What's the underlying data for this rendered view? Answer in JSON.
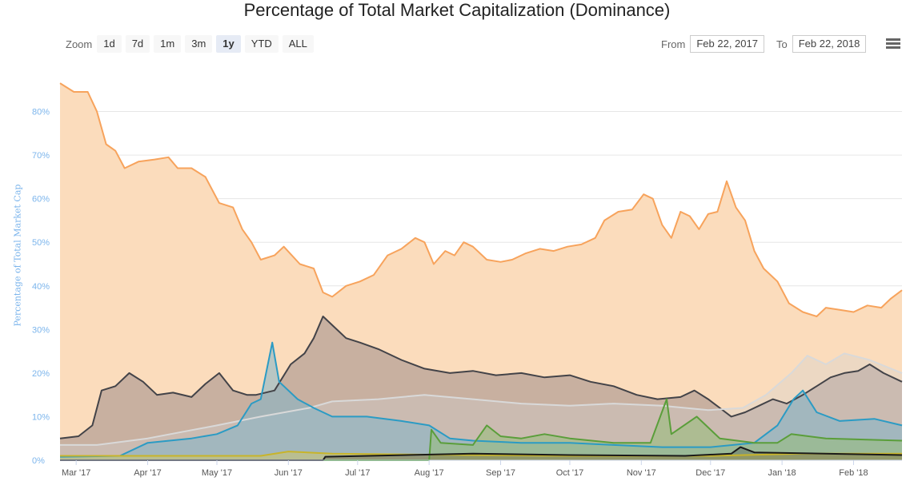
{
  "title": "Percentage of Total Market Capitalization (Dominance)",
  "zoom": {
    "label": "Zoom",
    "buttons": [
      "1d",
      "7d",
      "1m",
      "3m",
      "1y",
      "YTD",
      "ALL"
    ],
    "active": "1y"
  },
  "range": {
    "from_label": "From",
    "from_value": "Feb 22, 2017",
    "to_label": "To",
    "to_value": "Feb 22, 2018"
  },
  "menu_icon": "hamburger-menu-icon",
  "chart_data": {
    "type": "area",
    "title": "Percentage of Total Market Capitalization (Dominance)",
    "ylabel": "Percentage of Total Market Cap",
    "ylim": [
      0,
      90
    ],
    "y_ticks": [
      "0%",
      "10%",
      "20%",
      "30%",
      "40%",
      "50%",
      "60%",
      "70%",
      "80%"
    ],
    "x_ticks": [
      "Mar '17",
      "Apr '17",
      "May '17",
      "Jun '17",
      "Jul '17",
      "Aug '17",
      "Sep '17",
      "Oct '17",
      "Nov '17",
      "Dec '17",
      "Jan '18",
      "Feb '18"
    ],
    "xlim": [
      "2017-02-22",
      "2018-02-22"
    ],
    "grid": true,
    "legend": "none",
    "series": [
      {
        "color": "#f7a35c",
        "fill": "#fbdcbc",
        "points": [
          [
            "2017-02-22",
            86.5
          ],
          [
            "2017-02-28",
            84.5
          ],
          [
            "2017-03-06",
            84.5
          ],
          [
            "2017-03-10",
            80
          ],
          [
            "2017-03-14",
            72.5
          ],
          [
            "2017-03-18",
            71
          ],
          [
            "2017-03-22",
            67
          ],
          [
            "2017-03-28",
            68.5
          ],
          [
            "2017-04-04",
            69
          ],
          [
            "2017-04-10",
            69.5
          ],
          [
            "2017-04-14",
            67
          ],
          [
            "2017-04-20",
            67
          ],
          [
            "2017-04-26",
            65
          ],
          [
            "2017-05-02",
            59
          ],
          [
            "2017-05-08",
            58
          ],
          [
            "2017-05-12",
            53
          ],
          [
            "2017-05-16",
            50
          ],
          [
            "2017-05-20",
            46
          ],
          [
            "2017-05-26",
            47
          ],
          [
            "2017-05-30",
            49
          ],
          [
            "2017-06-06",
            45
          ],
          [
            "2017-06-12",
            44
          ],
          [
            "2017-06-16",
            38.5
          ],
          [
            "2017-06-20",
            37.5
          ],
          [
            "2017-06-26",
            40
          ],
          [
            "2017-07-02",
            41
          ],
          [
            "2017-07-08",
            42.5
          ],
          [
            "2017-07-14",
            47
          ],
          [
            "2017-07-20",
            48.5
          ],
          [
            "2017-07-26",
            51
          ],
          [
            "2017-07-30",
            50
          ],
          [
            "2017-08-03",
            45
          ],
          [
            "2017-08-08",
            48
          ],
          [
            "2017-08-12",
            47
          ],
          [
            "2017-08-16",
            50
          ],
          [
            "2017-08-20",
            49
          ],
          [
            "2017-08-26",
            46
          ],
          [
            "2017-09-01",
            45.5
          ],
          [
            "2017-09-06",
            46
          ],
          [
            "2017-09-12",
            47.5
          ],
          [
            "2017-09-18",
            48.5
          ],
          [
            "2017-09-24",
            48
          ],
          [
            "2017-09-30",
            49
          ],
          [
            "2017-10-06",
            49.5
          ],
          [
            "2017-10-12",
            51
          ],
          [
            "2017-10-16",
            55
          ],
          [
            "2017-10-22",
            57
          ],
          [
            "2017-10-28",
            57.5
          ],
          [
            "2017-11-02",
            61
          ],
          [
            "2017-11-06",
            60
          ],
          [
            "2017-11-10",
            54
          ],
          [
            "2017-11-14",
            51
          ],
          [
            "2017-11-18",
            57
          ],
          [
            "2017-11-22",
            56
          ],
          [
            "2017-11-26",
            53
          ],
          [
            "2017-11-30",
            56.5
          ],
          [
            "2017-12-04",
            57
          ],
          [
            "2017-12-08",
            64
          ],
          [
            "2017-12-12",
            58
          ],
          [
            "2017-12-16",
            55
          ],
          [
            "2017-12-20",
            48
          ],
          [
            "2017-12-24",
            44
          ],
          [
            "2017-12-30",
            41
          ],
          [
            "2018-01-04",
            36
          ],
          [
            "2018-01-10",
            34
          ],
          [
            "2018-01-16",
            33
          ],
          [
            "2018-01-20",
            35
          ],
          [
            "2018-01-26",
            34.5
          ],
          [
            "2018-02-01",
            34
          ],
          [
            "2018-02-07",
            35.5
          ],
          [
            "2018-02-13",
            35
          ],
          [
            "2018-02-17",
            37
          ],
          [
            "2018-02-22",
            39
          ]
        ]
      },
      {
        "color": "#434348",
        "fill": "#c8b0a0",
        "points": [
          [
            "2017-02-22",
            5
          ],
          [
            "2017-03-02",
            5.5
          ],
          [
            "2017-03-08",
            8
          ],
          [
            "2017-03-12",
            16
          ],
          [
            "2017-03-18",
            17
          ],
          [
            "2017-03-24",
            20
          ],
          [
            "2017-03-30",
            18
          ],
          [
            "2017-04-05",
            15
          ],
          [
            "2017-04-12",
            15.5
          ],
          [
            "2017-04-20",
            14.5
          ],
          [
            "2017-04-26",
            17.5
          ],
          [
            "2017-05-02",
            20
          ],
          [
            "2017-05-08",
            16
          ],
          [
            "2017-05-14",
            15
          ],
          [
            "2017-05-18",
            15
          ],
          [
            "2017-05-26",
            16
          ],
          [
            "2017-06-02",
            22
          ],
          [
            "2017-06-08",
            24.5
          ],
          [
            "2017-06-12",
            28
          ],
          [
            "2017-06-16",
            33
          ],
          [
            "2017-06-20",
            31
          ],
          [
            "2017-06-26",
            28
          ],
          [
            "2017-07-02",
            27
          ],
          [
            "2017-07-10",
            25.5
          ],
          [
            "2017-07-20",
            23
          ],
          [
            "2017-07-30",
            21
          ],
          [
            "2017-08-10",
            20
          ],
          [
            "2017-08-20",
            20.5
          ],
          [
            "2017-08-30",
            19.5
          ],
          [
            "2017-09-10",
            20
          ],
          [
            "2017-09-20",
            19
          ],
          [
            "2017-10-01",
            19.5
          ],
          [
            "2017-10-10",
            18
          ],
          [
            "2017-10-20",
            17
          ],
          [
            "2017-10-30",
            15
          ],
          [
            "2017-11-08",
            14
          ],
          [
            "2017-11-18",
            14.5
          ],
          [
            "2017-11-24",
            16
          ],
          [
            "2017-11-30",
            14
          ],
          [
            "2017-12-05",
            12
          ],
          [
            "2017-12-10",
            10
          ],
          [
            "2017-12-16",
            11
          ],
          [
            "2017-12-22",
            12.5
          ],
          [
            "2017-12-28",
            14
          ],
          [
            "2018-01-03",
            13
          ],
          [
            "2018-01-10",
            15
          ],
          [
            "2018-01-16",
            17
          ],
          [
            "2018-01-22",
            19
          ],
          [
            "2018-01-28",
            20
          ],
          [
            "2018-02-03",
            20.5
          ],
          [
            "2018-02-08",
            22
          ],
          [
            "2018-02-14",
            20
          ],
          [
            "2018-02-22",
            18
          ]
        ]
      },
      {
        "color": "#d9d9d9",
        "fill": "rgba(210,210,210,0.35)",
        "points": [
          [
            "2017-02-22",
            3.5
          ],
          [
            "2017-03-10",
            3.5
          ],
          [
            "2017-04-01",
            5
          ],
          [
            "2017-05-01",
            8
          ],
          [
            "2017-05-20",
            10
          ],
          [
            "2017-06-10",
            12
          ],
          [
            "2017-06-20",
            13.5
          ],
          [
            "2017-07-10",
            14
          ],
          [
            "2017-07-30",
            15
          ],
          [
            "2017-08-20",
            14
          ],
          [
            "2017-09-10",
            13
          ],
          [
            "2017-10-01",
            12.5
          ],
          [
            "2017-10-20",
            13
          ],
          [
            "2017-11-10",
            12.5
          ],
          [
            "2017-11-30",
            11.5
          ],
          [
            "2017-12-15",
            12
          ],
          [
            "2017-12-25",
            15
          ],
          [
            "2018-01-05",
            20
          ],
          [
            "2018-01-12",
            24
          ],
          [
            "2018-01-20",
            22
          ],
          [
            "2018-01-28",
            24.5
          ],
          [
            "2018-02-08",
            23
          ],
          [
            "2018-02-22",
            20
          ]
        ]
      },
      {
        "color": "#2b9bc4",
        "fill": "rgba(130,180,200,0.55)",
        "points": [
          [
            "2017-02-22",
            0.8
          ],
          [
            "2017-03-20",
            1
          ],
          [
            "2017-04-01",
            4
          ],
          [
            "2017-04-20",
            5
          ],
          [
            "2017-05-01",
            6
          ],
          [
            "2017-05-10",
            8
          ],
          [
            "2017-05-16",
            13
          ],
          [
            "2017-05-20",
            14
          ],
          [
            "2017-05-25",
            27
          ],
          [
            "2017-05-28",
            18
          ],
          [
            "2017-06-05",
            14
          ],
          [
            "2017-06-12",
            12
          ],
          [
            "2017-06-20",
            10
          ],
          [
            "2017-07-05",
            10
          ],
          [
            "2017-07-20",
            9
          ],
          [
            "2017-08-01",
            8
          ],
          [
            "2017-08-10",
            5
          ],
          [
            "2017-08-20",
            4.5
          ],
          [
            "2017-09-10",
            4
          ],
          [
            "2017-10-01",
            4
          ],
          [
            "2017-10-20",
            3.5
          ],
          [
            "2017-11-10",
            3
          ],
          [
            "2017-12-01",
            3
          ],
          [
            "2017-12-20",
            4
          ],
          [
            "2017-12-30",
            8
          ],
          [
            "2018-01-06",
            14
          ],
          [
            "2018-01-10",
            16
          ],
          [
            "2018-01-16",
            11
          ],
          [
            "2018-01-26",
            9
          ],
          [
            "2018-02-10",
            9.5
          ],
          [
            "2018-02-22",
            8
          ]
        ]
      },
      {
        "color": "#5a9e3a",
        "fill": "rgba(150,190,120,0.55)",
        "points": [
          [
            "2017-02-22",
            0
          ],
          [
            "2017-08-01",
            0
          ],
          [
            "2017-08-02",
            7
          ],
          [
            "2017-08-06",
            4
          ],
          [
            "2017-08-20",
            3.5
          ],
          [
            "2017-08-26",
            8
          ],
          [
            "2017-09-01",
            5.5
          ],
          [
            "2017-09-10",
            5
          ],
          [
            "2017-09-20",
            6
          ],
          [
            "2017-10-01",
            5
          ],
          [
            "2017-10-20",
            4
          ],
          [
            "2017-11-05",
            4
          ],
          [
            "2017-11-12",
            14
          ],
          [
            "2017-11-14",
            6
          ],
          [
            "2017-11-25",
            10
          ],
          [
            "2017-12-05",
            5
          ],
          [
            "2017-12-20",
            4
          ],
          [
            "2017-12-30",
            4
          ],
          [
            "2018-01-05",
            6
          ],
          [
            "2018-01-20",
            5
          ],
          [
            "2018-02-22",
            4.5
          ]
        ]
      },
      {
        "color": "#c8b42a",
        "fill": "rgba(220,200,80,0.4)",
        "points": [
          [
            "2017-02-22",
            1
          ],
          [
            "2017-05-20",
            1
          ],
          [
            "2017-06-01",
            2
          ],
          [
            "2017-06-20",
            1.5
          ],
          [
            "2017-08-20",
            1.2
          ],
          [
            "2017-10-01",
            1
          ],
          [
            "2017-12-01",
            1
          ],
          [
            "2018-01-10",
            1.5
          ],
          [
            "2018-02-22",
            1.5
          ]
        ]
      },
      {
        "color": "#1a1a1a",
        "fill": "rgba(60,60,60,0.3)",
        "points": [
          [
            "2017-02-22",
            0
          ],
          [
            "2017-06-16",
            0
          ],
          [
            "2017-06-17",
            0.8
          ],
          [
            "2017-08-20",
            1.5
          ],
          [
            "2017-10-01",
            1.2
          ],
          [
            "2017-11-20",
            1
          ],
          [
            "2017-12-10",
            1.5
          ],
          [
            "2017-12-14",
            3
          ],
          [
            "2017-12-20",
            1.8
          ],
          [
            "2018-02-22",
            1.2
          ]
        ]
      }
    ]
  }
}
